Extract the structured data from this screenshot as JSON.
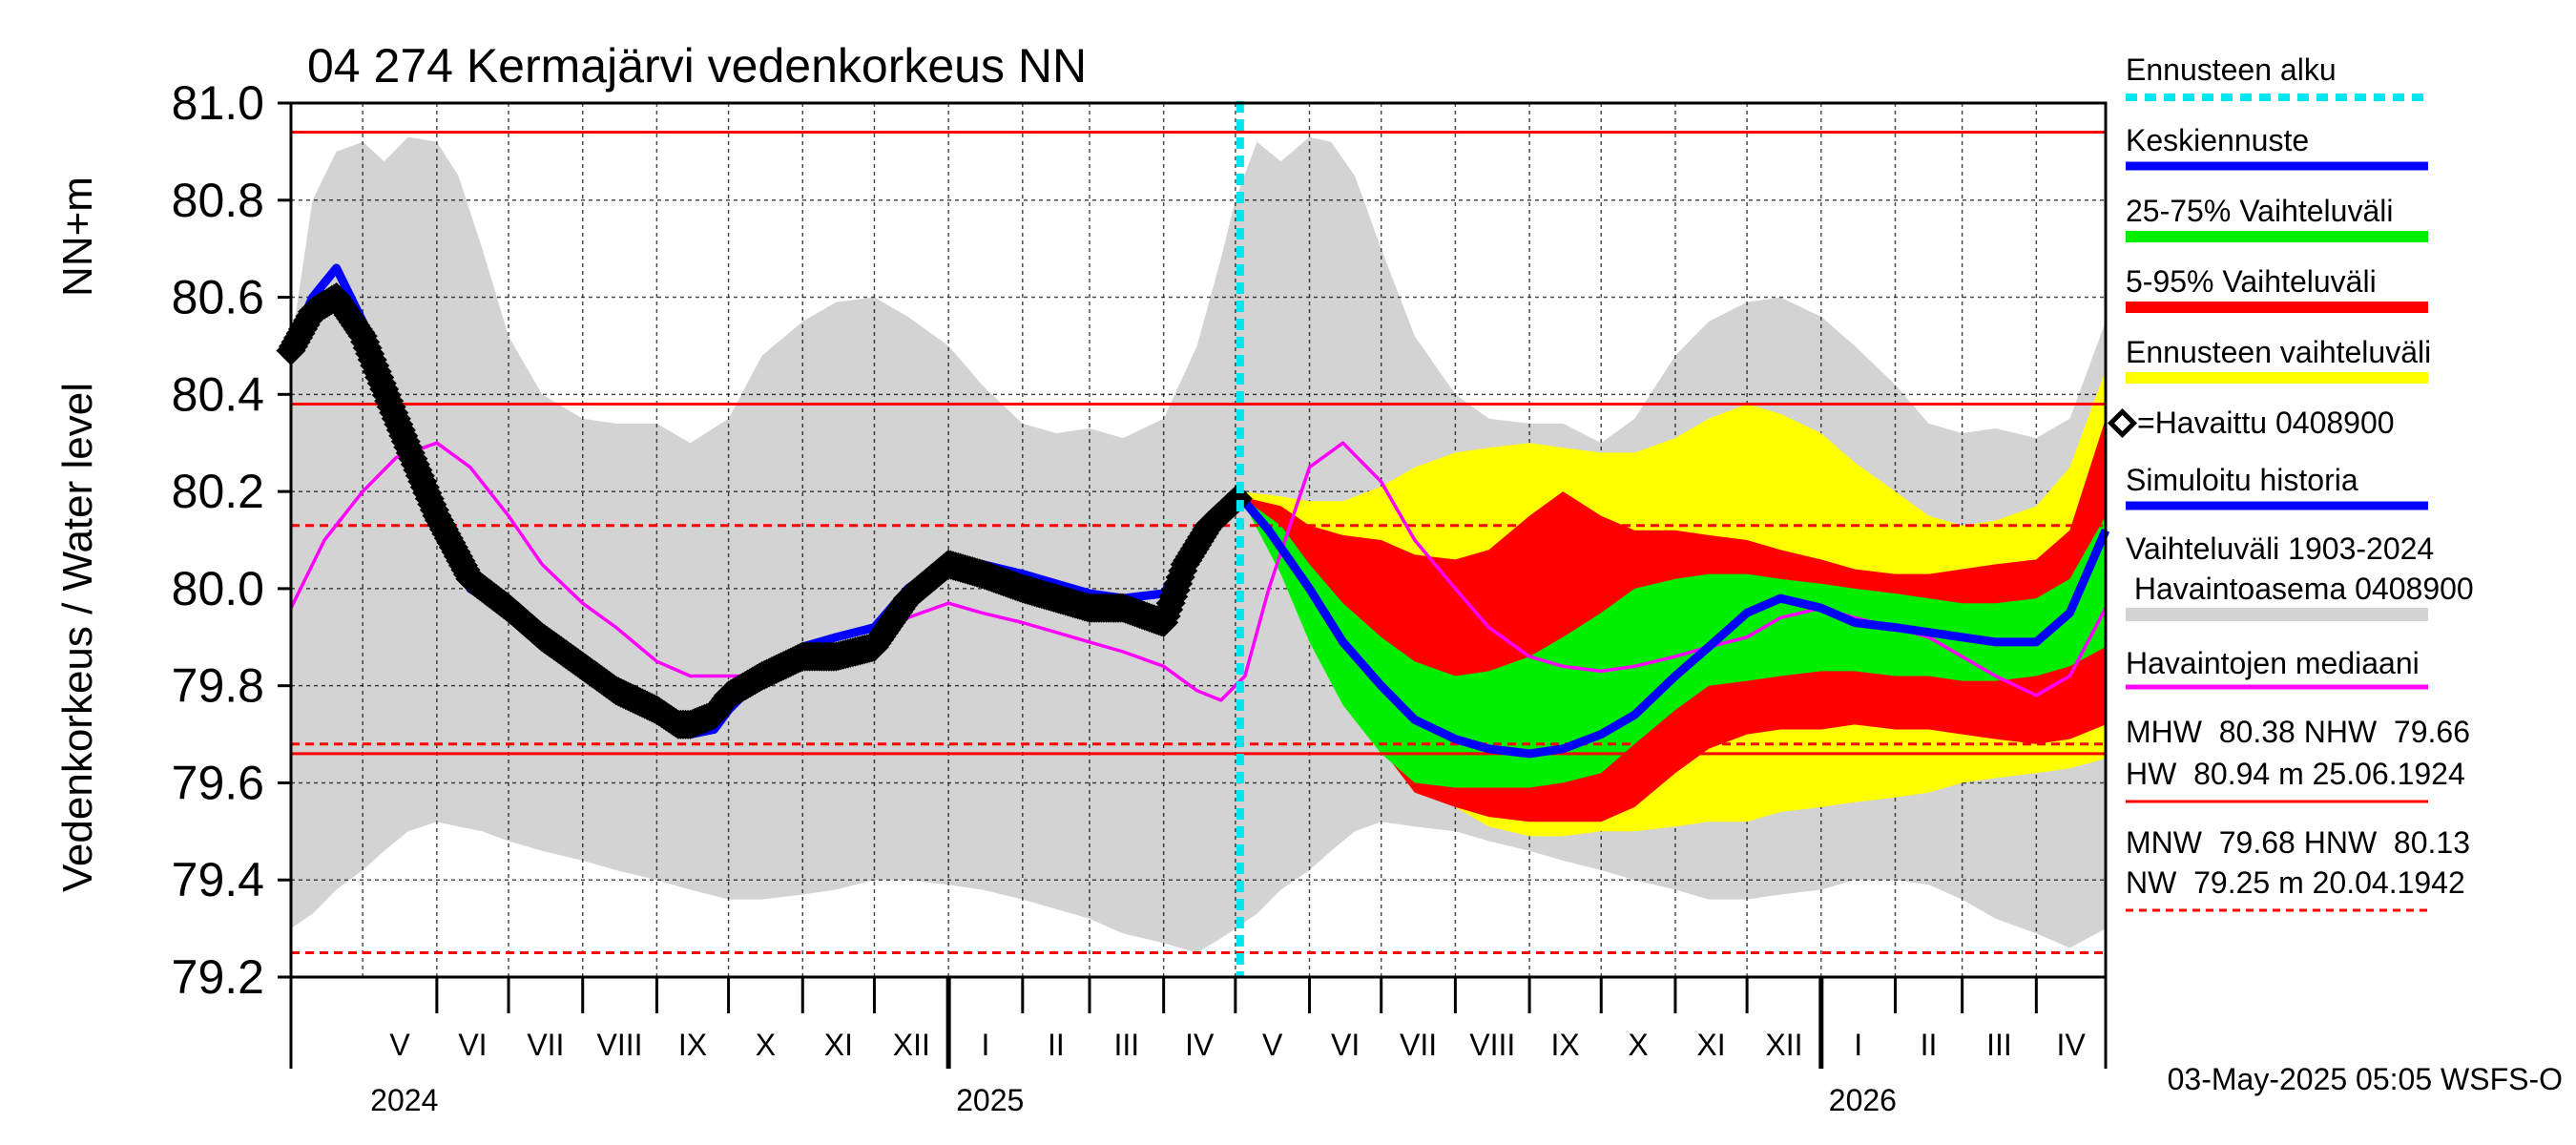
{
  "chart_data": {
    "type": "area",
    "title": "04 274 Kermajärvi vedenkorkeus NN",
    "ylabel": "Vedenkorkeus / Water level",
    "ylabel_unit": "NN+m",
    "ylim": [
      79.2,
      81.0
    ],
    "y_ticks": [
      "81.0",
      "80.8",
      "80.6",
      "80.4",
      "80.2",
      "80.0",
      "79.8",
      "79.6",
      "79.4",
      "79.2"
    ],
    "y_tick_values": [
      81.0,
      80.8,
      80.6,
      80.4,
      80.2,
      80.0,
      79.8,
      79.6,
      79.4,
      79.2
    ],
    "x_range": [
      "2024-04-01",
      "2026-04-30"
    ],
    "grid": true,
    "months": [
      {
        "label": "V",
        "start": "2024-05-01"
      },
      {
        "label": "VI",
        "start": "2024-06-01"
      },
      {
        "label": "VII",
        "start": "2024-07-01"
      },
      {
        "label": "VIII",
        "start": "2024-08-01"
      },
      {
        "label": "IX",
        "start": "2024-09-01"
      },
      {
        "label": "X",
        "start": "2024-10-01"
      },
      {
        "label": "XI",
        "start": "2024-11-01"
      },
      {
        "label": "XII",
        "start": "2024-12-01"
      },
      {
        "label": "I",
        "start": "2025-01-01"
      },
      {
        "label": "II",
        "start": "2025-02-01"
      },
      {
        "label": "III",
        "start": "2025-03-01"
      },
      {
        "label": "IV",
        "start": "2025-04-01"
      },
      {
        "label": "V",
        "start": "2025-05-01"
      },
      {
        "label": "VI",
        "start": "2025-06-01"
      },
      {
        "label": "VII",
        "start": "2025-07-01"
      },
      {
        "label": "VIII",
        "start": "2025-08-01"
      },
      {
        "label": "IX",
        "start": "2025-09-01"
      },
      {
        "label": "X",
        "start": "2025-10-01"
      },
      {
        "label": "XI",
        "start": "2025-11-01"
      },
      {
        "label": "XII",
        "start": "2025-12-01"
      },
      {
        "label": "I",
        "start": "2026-01-01"
      },
      {
        "label": "II",
        "start": "2026-02-01"
      },
      {
        "label": "III",
        "start": "2026-03-01"
      },
      {
        "label": "IV",
        "start": "2026-04-01"
      }
    ],
    "years": [
      {
        "label": "2024",
        "start": "2024-05-01"
      },
      {
        "label": "2025",
        "start": "2025-01-01"
      },
      {
        "label": "2026",
        "start": "2026-01-01"
      }
    ],
    "forecast_start": "2025-05-03",
    "reference_lines": [
      {
        "name": "HW",
        "value": 80.94,
        "style": "solid"
      },
      {
        "name": "MHW",
        "value": 80.38,
        "style": "solid"
      },
      {
        "name": "HNW",
        "value": 80.13,
        "style": "dashed"
      },
      {
        "name": "MNW",
        "value": 79.68,
        "style": "dashed"
      },
      {
        "name": "NHW",
        "value": 79.66,
        "style": "solid"
      },
      {
        "name": "NW",
        "value": 79.25,
        "style": "dashed"
      }
    ],
    "colors": {
      "range": "#d3d3d3",
      "forecast_range": "#ffff00",
      "p5_95": "#ff0000",
      "p25_75": "#00ee00",
      "mean": "#0000ff",
      "simulated": "#0000ff",
      "observed": "#000000",
      "median": "#ff00ff",
      "reference": "#ff0000",
      "forecast_start": "#00e5ee"
    },
    "series": {
      "range_1903_2024": {
        "x": [
          "2024-04-01",
          "2024-04-10",
          "2024-04-20",
          "2024-05-01",
          "2024-05-10",
          "2024-05-20",
          "2024-06-01",
          "2024-06-10",
          "2024-06-20",
          "2024-07-01",
          "2024-07-15",
          "2024-08-01",
          "2024-08-15",
          "2024-09-01",
          "2024-09-15",
          "2024-10-01",
          "2024-10-15",
          "2024-11-01",
          "2024-11-15",
          "2024-12-01",
          "2024-12-15",
          "2025-01-01",
          "2025-01-15",
          "2025-02-01",
          "2025-02-15",
          "2025-03-01",
          "2025-03-15",
          "2025-04-01",
          "2025-04-15",
          "2025-04-25",
          "2025-05-01",
          "2025-05-10",
          "2025-05-20",
          "2025-06-01",
          "2025-06-10",
          "2025-06-20",
          "2025-07-01",
          "2025-07-15",
          "2025-08-01",
          "2025-08-15",
          "2025-09-01",
          "2025-09-15",
          "2025-10-01",
          "2025-10-15",
          "2025-11-01",
          "2025-11-15",
          "2025-12-01",
          "2025-12-15",
          "2026-01-01",
          "2026-01-15",
          "2026-02-01",
          "2026-02-15",
          "2026-03-01",
          "2026-03-15",
          "2026-04-01",
          "2026-04-15",
          "2026-04-30"
        ],
        "low": [
          79.3,
          79.33,
          79.38,
          79.42,
          79.46,
          79.5,
          79.52,
          79.51,
          79.5,
          79.48,
          79.46,
          79.44,
          79.42,
          79.4,
          79.38,
          79.36,
          79.36,
          79.37,
          79.38,
          79.4,
          79.4,
          79.39,
          79.38,
          79.36,
          79.34,
          79.32,
          79.29,
          79.27,
          79.25,
          79.28,
          79.3,
          79.33,
          79.38,
          79.42,
          79.46,
          79.5,
          79.52,
          79.51,
          79.5,
          79.48,
          79.46,
          79.44,
          79.42,
          79.4,
          79.38,
          79.36,
          79.36,
          79.37,
          79.38,
          79.4,
          79.4,
          79.39,
          79.36,
          79.32,
          79.29,
          79.26,
          79.3
        ],
        "high": [
          80.5,
          80.8,
          80.9,
          80.92,
          80.88,
          80.93,
          80.92,
          80.85,
          80.7,
          80.52,
          80.4,
          80.35,
          80.34,
          80.34,
          80.3,
          80.35,
          80.48,
          80.55,
          80.59,
          80.6,
          80.56,
          80.5,
          80.42,
          80.34,
          80.32,
          80.33,
          80.31,
          80.35,
          80.5,
          80.68,
          80.8,
          80.92,
          80.88,
          80.93,
          80.92,
          80.85,
          80.7,
          80.52,
          80.4,
          80.35,
          80.34,
          80.34,
          80.3,
          80.35,
          80.48,
          80.55,
          80.59,
          80.6,
          80.56,
          80.5,
          80.42,
          80.34,
          80.32,
          80.33,
          80.31,
          80.35,
          80.55
        ]
      },
      "forecast_envelope": {
        "x": [
          "2025-05-03",
          "2025-05-20",
          "2025-06-01",
          "2025-06-15",
          "2025-07-01",
          "2025-07-15",
          "2025-08-01",
          "2025-08-15",
          "2025-09-01",
          "2025-09-15",
          "2025-10-01",
          "2025-10-15",
          "2025-11-01",
          "2025-11-15",
          "2025-12-01",
          "2025-12-15",
          "2026-01-01",
          "2026-01-15",
          "2026-02-01",
          "2026-02-15",
          "2026-03-01",
          "2026-03-15",
          "2026-04-01",
          "2026-04-15",
          "2026-04-30"
        ],
        "low": [
          80.19,
          80.1,
          79.98,
          79.85,
          79.72,
          79.62,
          79.55,
          79.51,
          79.49,
          79.49,
          79.5,
          79.5,
          79.51,
          79.52,
          79.52,
          79.54,
          79.55,
          79.56,
          79.57,
          79.58,
          79.6,
          79.61,
          79.62,
          79.63,
          79.65
        ],
        "high": [
          80.2,
          80.19,
          80.18,
          80.18,
          80.21,
          80.25,
          80.28,
          80.29,
          80.3,
          80.29,
          80.28,
          80.28,
          80.31,
          80.35,
          80.38,
          80.36,
          80.32,
          80.26,
          80.2,
          80.15,
          80.13,
          80.14,
          80.17,
          80.25,
          80.45
        ]
      },
      "p5_95": {
        "x": [
          "2025-05-03",
          "2025-05-20",
          "2025-06-01",
          "2025-06-15",
          "2025-07-01",
          "2025-07-15",
          "2025-08-01",
          "2025-08-15",
          "2025-09-01",
          "2025-09-15",
          "2025-10-01",
          "2025-10-15",
          "2025-11-01",
          "2025-11-15",
          "2025-12-01",
          "2025-12-15",
          "2026-01-01",
          "2026-01-15",
          "2026-02-01",
          "2026-02-15",
          "2026-03-01",
          "2026-03-15",
          "2026-04-01",
          "2026-04-15",
          "2026-04-30"
        ],
        "low": [
          80.19,
          80.08,
          79.94,
          79.8,
          79.67,
          79.58,
          79.55,
          79.53,
          79.52,
          79.52,
          79.52,
          79.55,
          79.62,
          79.67,
          79.7,
          79.71,
          79.71,
          79.72,
          79.71,
          79.71,
          79.7,
          79.69,
          79.68,
          79.69,
          79.72
        ],
        "high": [
          80.19,
          80.17,
          80.13,
          80.11,
          80.1,
          80.07,
          80.06,
          80.08,
          80.15,
          80.2,
          80.15,
          80.12,
          80.12,
          80.11,
          80.1,
          80.08,
          80.06,
          80.04,
          80.03,
          80.03,
          80.04,
          80.05,
          80.06,
          80.12,
          80.35
        ]
      },
      "p25_75": {
        "x": [
          "2025-05-03",
          "2025-05-20",
          "2025-06-01",
          "2025-06-15",
          "2025-07-01",
          "2025-07-15",
          "2025-08-01",
          "2025-08-15",
          "2025-09-01",
          "2025-09-15",
          "2025-10-01",
          "2025-10-15",
          "2025-11-01",
          "2025-11-15",
          "2025-12-01",
          "2025-12-15",
          "2026-01-01",
          "2026-01-15",
          "2026-02-01",
          "2026-02-15",
          "2026-03-01",
          "2026-03-15",
          "2026-04-01",
          "2026-04-15",
          "2026-04-30"
        ],
        "low": [
          80.19,
          80.03,
          79.89,
          79.76,
          79.66,
          79.6,
          79.59,
          79.59,
          79.59,
          79.6,
          79.62,
          79.68,
          79.75,
          79.8,
          79.81,
          79.82,
          79.83,
          79.83,
          79.82,
          79.82,
          79.81,
          79.81,
          79.82,
          79.84,
          79.88
        ],
        "high": [
          80.19,
          80.13,
          80.05,
          79.97,
          79.9,
          79.85,
          79.82,
          79.83,
          79.86,
          79.9,
          79.95,
          80.0,
          80.02,
          80.03,
          80.03,
          80.02,
          80.01,
          80.0,
          79.99,
          79.98,
          79.97,
          79.97,
          79.98,
          80.02,
          80.15
        ]
      },
      "mean_forecast": {
        "x": [
          "2025-05-03",
          "2025-05-15",
          "2025-06-01",
          "2025-06-15",
          "2025-07-01",
          "2025-07-15",
          "2025-08-01",
          "2025-08-15",
          "2025-09-01",
          "2025-09-15",
          "2025-10-01",
          "2025-10-15",
          "2025-11-01",
          "2025-11-15",
          "2025-12-01",
          "2025-12-15",
          "2026-01-01",
          "2026-01-15",
          "2026-02-01",
          "2026-02-15",
          "2026-03-01",
          "2026-03-15",
          "2026-04-01",
          "2026-04-15",
          "2026-04-30"
        ],
        "y": [
          80.19,
          80.12,
          80.0,
          79.89,
          79.8,
          79.73,
          79.69,
          79.67,
          79.66,
          79.67,
          79.7,
          79.74,
          79.82,
          79.88,
          79.95,
          79.98,
          79.96,
          79.93,
          79.92,
          79.91,
          79.9,
          79.89,
          79.89,
          79.95,
          80.12
        ]
      },
      "simulated_history": {
        "x": [
          "2024-04-01",
          "2024-04-10",
          "2024-04-20",
          "2024-05-01",
          "2024-05-15",
          "2024-06-01",
          "2024-06-15",
          "2024-07-01",
          "2024-07-15",
          "2024-08-01",
          "2024-08-15",
          "2024-09-01",
          "2024-09-10",
          "2024-09-15",
          "2024-09-25",
          "2024-10-01",
          "2024-10-15",
          "2024-11-01",
          "2024-11-15",
          "2024-12-01",
          "2024-12-15",
          "2025-01-01",
          "2025-01-15",
          "2025-02-01",
          "2025-02-15",
          "2025-03-01",
          "2025-03-15",
          "2025-04-01",
          "2025-04-10",
          "2025-04-20",
          "2025-05-03"
        ],
        "y": [
          80.5,
          80.6,
          80.66,
          80.55,
          80.35,
          80.15,
          80.0,
          79.95,
          79.9,
          79.85,
          79.8,
          79.75,
          79.72,
          79.7,
          79.71,
          79.75,
          79.82,
          79.88,
          79.9,
          79.92,
          80.0,
          80.06,
          80.05,
          80.03,
          80.01,
          79.99,
          79.98,
          79.99,
          80.05,
          80.14,
          80.19
        ]
      },
      "observed": {
        "x": [
          "2024-04-01",
          "2024-04-10",
          "2024-04-20",
          "2024-05-01",
          "2024-05-15",
          "2024-06-01",
          "2024-06-15",
          "2024-07-01",
          "2024-07-15",
          "2024-08-01",
          "2024-08-15",
          "2024-09-01",
          "2024-09-10",
          "2024-09-15",
          "2024-09-25",
          "2024-10-01",
          "2024-10-15",
          "2024-11-01",
          "2024-11-15",
          "2024-12-01",
          "2024-12-15",
          "2025-01-01",
          "2025-01-15",
          "2025-02-01",
          "2025-02-15",
          "2025-03-01",
          "2025-03-15",
          "2025-04-01",
          "2025-04-10",
          "2025-04-20",
          "2025-05-03"
        ],
        "y": [
          80.49,
          80.57,
          80.6,
          80.52,
          80.35,
          80.15,
          80.02,
          79.96,
          79.9,
          79.84,
          79.79,
          79.75,
          79.72,
          79.72,
          79.74,
          79.78,
          79.82,
          79.86,
          79.86,
          79.88,
          79.98,
          80.05,
          80.03,
          80.0,
          79.98,
          79.96,
          79.96,
          79.93,
          80.05,
          80.13,
          80.19
        ]
      },
      "median": {
        "x": [
          "2024-04-01",
          "2024-04-15",
          "2024-05-01",
          "2024-05-15",
          "2024-06-01",
          "2024-06-15",
          "2024-07-01",
          "2024-07-15",
          "2024-08-01",
          "2024-08-15",
          "2024-09-01",
          "2024-09-15",
          "2024-10-01",
          "2024-10-15",
          "2024-11-01",
          "2024-11-15",
          "2024-12-01",
          "2024-12-15",
          "2025-01-01",
          "2025-01-15",
          "2025-02-01",
          "2025-02-15",
          "2025-03-01",
          "2025-03-15",
          "2025-04-01",
          "2025-04-15",
          "2025-04-25",
          "2025-05-05",
          "2025-05-15",
          "2025-06-01",
          "2025-06-15",
          "2025-07-01",
          "2025-07-15",
          "2025-08-01",
          "2025-08-15",
          "2025-09-01",
          "2025-09-15",
          "2025-10-01",
          "2025-10-15",
          "2025-11-01",
          "2025-11-15",
          "2025-12-01",
          "2025-12-15",
          "2026-01-01",
          "2026-01-15",
          "2026-02-01",
          "2026-02-15",
          "2026-03-01",
          "2026-03-15",
          "2026-04-01",
          "2026-04-15",
          "2026-04-30"
        ],
        "y": [
          79.96,
          80.1,
          80.2,
          80.27,
          80.3,
          80.25,
          80.15,
          80.05,
          79.97,
          79.92,
          79.85,
          79.82,
          79.82,
          79.82,
          79.84,
          79.86,
          79.88,
          79.94,
          79.97,
          79.95,
          79.93,
          79.91,
          79.89,
          79.87,
          79.84,
          79.79,
          79.77,
          79.82,
          80.0,
          80.25,
          80.3,
          80.22,
          80.1,
          80.0,
          79.92,
          79.86,
          79.84,
          79.83,
          79.84,
          79.86,
          79.88,
          79.9,
          79.94,
          79.96,
          79.94,
          79.92,
          79.9,
          79.86,
          79.82,
          79.78,
          79.82,
          79.96
        ]
      }
    },
    "legend": {
      "placement": "right",
      "entries": [
        {
          "label": "Ennusteen alku",
          "color": "#00e5ee",
          "style": "dotted"
        },
        {
          "label": "Keskiennuste",
          "color": "#0000ff",
          "style": "line"
        },
        {
          "label": "25-75% Vaihteluväli",
          "color": "#00ee00",
          "style": "line"
        },
        {
          "label": "5-95% Vaihteluväli",
          "color": "#ff0000",
          "style": "line"
        },
        {
          "label": "Ennusteen vaihteluväli",
          "color": "#ffff00",
          "style": "line"
        },
        {
          "label": "=Havaittu 0408900",
          "color": "#000000",
          "style": "marker"
        },
        {
          "label": "Simuloitu historia",
          "color": "#0000ff",
          "style": "line"
        },
        {
          "label": "Vaihteluväli 1903-2024",
          "label2": " Havaintoasema 0408900",
          "color": "#d3d3d3",
          "style": "line"
        },
        {
          "label": "Havaintojen mediaani",
          "color": "#ff00ff",
          "style": "line"
        }
      ]
    },
    "stats": {
      "line1": "MHW  80.38 NHW  79.66",
      "line2": "HW  80.94 m 25.06.1924",
      "line3": "MNW  79.68 HNW  80.13",
      "line4": "NW  79.25 m 20.04.1942"
    },
    "footer": "03-May-2025 05:05 WSFS-O"
  }
}
